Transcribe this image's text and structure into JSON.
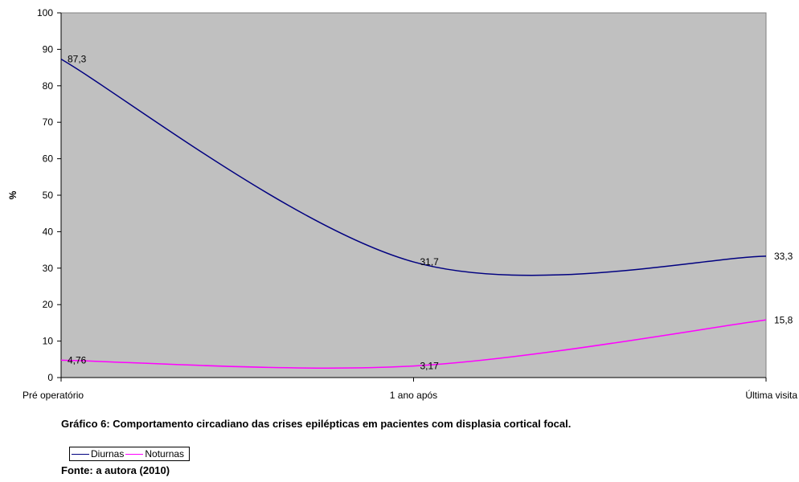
{
  "chart_data": {
    "type": "line",
    "title": "",
    "xlabel": "",
    "ylabel": "%",
    "ylim": [
      0,
      100
    ],
    "yticks": [
      0,
      10,
      20,
      30,
      40,
      50,
      60,
      70,
      80,
      90,
      100
    ],
    "categories": [
      "Pré operatório",
      "1 ano após",
      "Última visita"
    ],
    "series": [
      {
        "name": "Diurnas",
        "values": [
          87.3,
          31.7,
          33.3
        ],
        "labels": [
          "87,3",
          "31,7",
          "33,3"
        ],
        "color": "#000080"
      },
      {
        "name": "Noturnas",
        "values": [
          4.76,
          3.17,
          15.8
        ],
        "labels": [
          "4,76",
          "3,17",
          "15,8"
        ],
        "color": "#FF00FF"
      }
    ],
    "plot_background": "#C0C0C0",
    "grid": false,
    "legend_position": "bottom-left"
  },
  "caption": {
    "text": "Gráfico 6: Comportamento circadiano das crises epilépticas em pacientes com displasia cortical focal.",
    "source": "Fonte: a autora (2010)"
  }
}
